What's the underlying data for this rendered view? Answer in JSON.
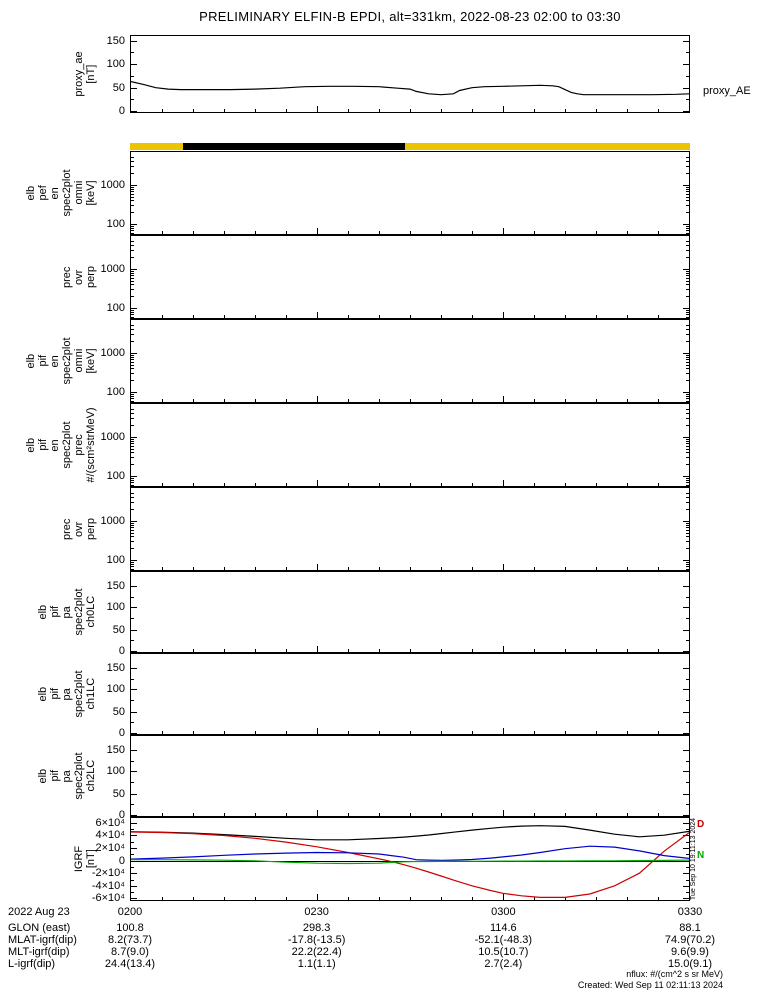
{
  "title": "PRELIMINARY ELFIN-B EPDI, alt=331km, 2022-08-23 02:00 to 03:30",
  "panels": [
    {
      "id": "proxy-ae",
      "kind": "proxy",
      "ylabel": "proxy_ae\n[nT]",
      "ticks": [
        "150",
        "100",
        "50",
        "0"
      ]
    },
    {
      "id": "elb-pef-en-omni",
      "kind": "log",
      "ylabel": "elb\npef\nen\nspec2plot\nomni\n[keV]",
      "ticks": [
        "1000",
        "100"
      ]
    },
    {
      "id": "pef-prec-ovr-perp",
      "kind": "log",
      "ylabel": "prec\novr\nperp",
      "ticks": [
        "1000",
        "100"
      ]
    },
    {
      "id": "elb-pif-en-omni",
      "kind": "log",
      "ylabel": "elb\npif\nen\nspec2plot\nomni\n[keV]",
      "ticks": [
        "1000",
        "100"
      ]
    },
    {
      "id": "elb-pif-en-prec",
      "kind": "log",
      "ylabel": "elb\npif\nen\nspec2plot\nprec\n#/(scm²strMeV)",
      "ticks": [
        "1000",
        "100"
      ]
    },
    {
      "id": "pif-prec-ovr-perp",
      "kind": "log",
      "ylabel": "prec\novr\nperp",
      "ticks": [
        "1000",
        "100"
      ]
    },
    {
      "id": "elb-pif-pa-ch0lc",
      "kind": "lc",
      "ylabel": "elb\npif\npa\nspec2plot\nch0LC",
      "ticks": [
        "150",
        "100",
        "50",
        "0"
      ]
    },
    {
      "id": "elb-pif-pa-ch1lc",
      "kind": "lc",
      "ylabel": "elb\npif\npa\nspec2plot\nch1LC",
      "ticks": [
        "150",
        "100",
        "50",
        "0"
      ]
    },
    {
      "id": "elb-pif-pa-ch2lc",
      "kind": "lc",
      "ylabel": "elb\npif\npa\nspec2plot\nch2LC",
      "ticks": [
        "150",
        "100",
        "50",
        "0"
      ]
    },
    {
      "id": "igrf",
      "kind": "igrf",
      "ylabel": "IGRF\n[nT]",
      "ticks": [
        "6×10⁴",
        "4×10⁴",
        "2×10⁴",
        "0",
        "-2×10⁴",
        "-4×10⁴",
        "-6×10⁴"
      ]
    }
  ],
  "status_bar": {
    "segments": [
      {
        "color": "#ecc500",
        "start_min": 0,
        "end_min": 8.5
      },
      {
        "color": "#000000",
        "start_min": 8.5,
        "end_min": 44.2
      },
      {
        "color": "#ecc500",
        "start_min": 44.2,
        "end_min": 90
      }
    ]
  },
  "right_labels": {
    "proxy_ae": "proxy_AE",
    "side_timestamp": "Tue Sep 10 19:11:13 2024",
    "igrf_legend": [
      {
        "text": "D",
        "color": "#cc0000",
        "top_pct": 2
      },
      {
        "text": "N",
        "color": "#00aa00",
        "top_pct": 40
      }
    ]
  },
  "bottom": {
    "rows": [
      {
        "label": "2022 Aug 23",
        "values": [
          "0200",
          "0230",
          "0300",
          "0330"
        ]
      },
      {
        "label": "GLON (east)",
        "values": [
          "100.8",
          "298.3",
          "114.6",
          "88.1"
        ]
      },
      {
        "label": "MLAT-igrf(dip)",
        "values": [
          "8.2(73.7)",
          "-17.8(-13.5)",
          "-52.1(-48.3)",
          "74.9(70.2)"
        ]
      },
      {
        "label": "MLT-igrf(dip)",
        "values": [
          "8.7(9.0)",
          "22.2(22.4)",
          "10.5(10.7)",
          "9.6(9.9)"
        ]
      },
      {
        "label": "L-igrf(dip)",
        "values": [
          "24.4(13.4)",
          "1.1(1.1)",
          "2.7(2.4)",
          "15.0(9.1)"
        ]
      }
    ]
  },
  "footer": {
    "nflux": "nflux: #/(cm^2 s sr MeV)",
    "created": "Created: Wed Sep 11 02:11:13 2024"
  },
  "chart_data": [
    {
      "panel_id": "proxy-ae",
      "type": "line",
      "title": "proxy_AE",
      "ylabel": "proxy_ae [nT]",
      "ylim": [
        0,
        150
      ],
      "x_unit": "minutes after 2022-08-23 02:00 UT",
      "color": "#000000",
      "x_minutes": [
        0,
        2,
        4,
        6,
        8,
        12,
        16,
        20,
        24,
        28,
        32,
        36,
        40,
        43,
        45,
        46,
        48,
        50,
        52,
        53,
        55,
        57,
        60,
        63,
        66,
        68,
        69,
        70,
        71,
        72,
        73,
        76,
        80,
        84,
        88,
        90
      ],
      "values": [
        63,
        57,
        50,
        47,
        46,
        46,
        46,
        47,
        49,
        52,
        53,
        53,
        52,
        49,
        47,
        42,
        37,
        35,
        37,
        44,
        50,
        52,
        53,
        54,
        55,
        54,
        52,
        46,
        40,
        37,
        35,
        35,
        35,
        35,
        36,
        37
      ]
    },
    {
      "panel_id": "elb-pef-en-omni",
      "type": "heatmap",
      "title": "elb pef en spec2plot omni",
      "ylabel": "[keV]",
      "yscale": "log",
      "ytick_values": [
        100,
        1000
      ],
      "values": [],
      "note": "panel empty (no data)"
    },
    {
      "panel_id": "pef-prec-ovr-perp",
      "type": "heatmap",
      "title": "pef prec ovr perp",
      "yscale": "log",
      "ytick_values": [
        100,
        1000
      ],
      "values": [],
      "note": "panel empty (no data)"
    },
    {
      "panel_id": "elb-pif-en-omni",
      "type": "heatmap",
      "title": "elb pif en spec2plot omni",
      "ylabel": "[keV]",
      "yscale": "log",
      "ytick_values": [
        100,
        1000
      ],
      "values": [],
      "note": "panel empty (no data)"
    },
    {
      "panel_id": "elb-pif-en-prec",
      "type": "heatmap",
      "title": "elb pif en spec2plot prec",
      "ylabel": "#/(scm²strMeV)",
      "yscale": "log",
      "ytick_values": [
        100,
        1000
      ],
      "values": [],
      "note": "panel empty (no data)"
    },
    {
      "panel_id": "pif-prec-ovr-perp",
      "type": "heatmap",
      "title": "pif prec ovr perp",
      "yscale": "log",
      "ytick_values": [
        100,
        1000
      ],
      "values": [],
      "note": "panel empty (no data)"
    },
    {
      "panel_id": "elb-pif-pa-ch0lc",
      "type": "heatmap",
      "title": "elb pif pa spec2plot ch0LC",
      "ytick_values": [
        0,
        50,
        100,
        150
      ],
      "values": [],
      "note": "panel empty (no data)"
    },
    {
      "panel_id": "elb-pif-pa-ch1lc",
      "type": "heatmap",
      "title": "elb pif pa spec2plot ch1LC",
      "ytick_values": [
        0,
        50,
        100,
        150
      ],
      "values": [],
      "note": "panel empty (no data)"
    },
    {
      "panel_id": "elb-pif-pa-ch2lc",
      "type": "heatmap",
      "title": "elb pif pa spec2plot ch2LC",
      "ytick_values": [
        0,
        50,
        100,
        150
      ],
      "values": [],
      "note": "panel empty (no data)"
    },
    {
      "panel_id": "igrf",
      "type": "line",
      "title": "IGRF [nT]",
      "ylim": [
        -60000,
        60000
      ],
      "x_unit": "minutes after 2022-08-23 02:00 UT",
      "legend_visible": [
        {
          "label": "D",
          "color": "#cc0000"
        },
        {
          "label": "N",
          "color": "#00aa00"
        }
      ],
      "x_minutes": [
        0,
        5,
        10,
        15,
        20,
        25,
        30,
        35,
        40,
        42,
        44,
        46,
        48,
        50,
        52,
        55,
        58,
        60,
        63,
        66,
        70,
        74,
        78,
        82,
        86,
        90
      ],
      "series": [
        {
          "name": "black",
          "color": "#000000",
          "values": [
            46000,
            45200,
            43800,
            41500,
            38500,
            35500,
            33200,
            33200,
            35200,
            36200,
            37500,
            39000,
            40800,
            43000,
            45200,
            48500,
            51500,
            53200,
            55000,
            55500,
            54500,
            48500,
            42000,
            38000,
            40500,
            46500
          ]
        },
        {
          "name": "red",
          "color": "#cc0000",
          "values": [
            45500,
            44800,
            43000,
            40000,
            35500,
            29500,
            22000,
            13000,
            3000,
            -1500,
            -6500,
            -12000,
            -18000,
            -24500,
            -31000,
            -40000,
            -47500,
            -52000,
            -56000,
            -58500,
            -58500,
            -53000,
            -40000,
            -20000,
            15000,
            44500
          ]
        },
        {
          "name": "blue",
          "color": "#0000cc",
          "values": [
            2500,
            4000,
            6000,
            8500,
            10500,
            12000,
            13000,
            12500,
            10500,
            8000,
            5500,
            1500,
            800,
            600,
            800,
            1800,
            4000,
            6000,
            9000,
            13000,
            19000,
            23000,
            21500,
            15500,
            8000,
            3500
          ]
        },
        {
          "name": "green",
          "color": "#00aa00",
          "values": [
            1500,
            1500,
            1200,
            700,
            -200,
            -2500,
            -4000,
            -4600,
            -4000,
            -2800,
            -1800,
            -1400,
            -1300,
            -1200,
            -1100,
            -1000,
            -900,
            -800,
            -700,
            -600,
            -500,
            -400,
            -200,
            0,
            400,
            900
          ]
        }
      ]
    }
  ]
}
